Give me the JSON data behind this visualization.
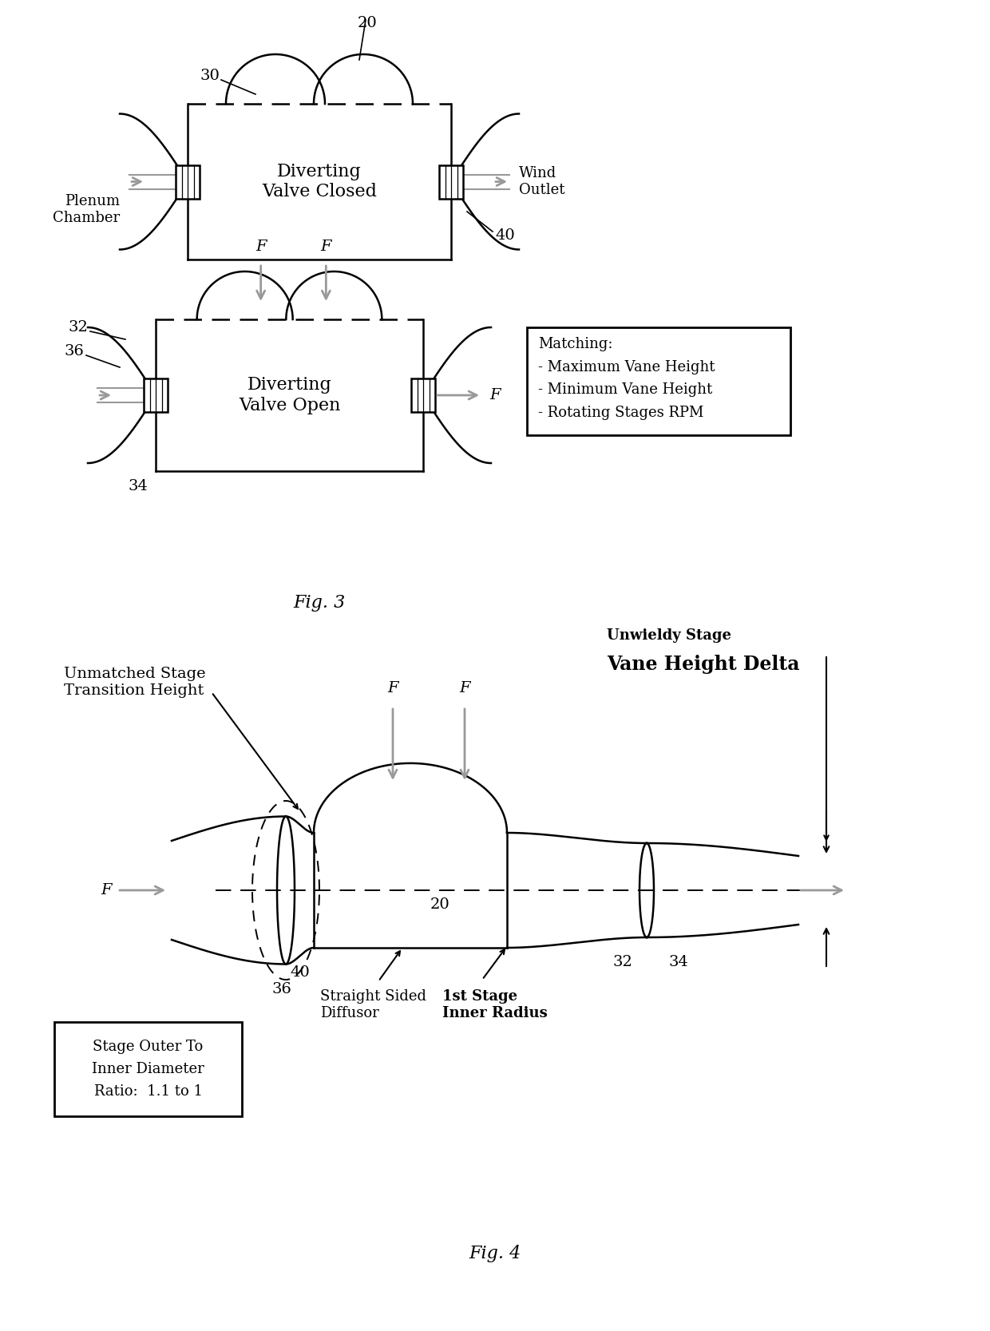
{
  "fig_width": 12.4,
  "fig_height": 16.67,
  "dpi": 100,
  "bg_color": "#ffffff",
  "lc": "#000000",
  "gc": "#999999",
  "lw": 1.8,
  "fig3_label": "Fig. 3",
  "fig4_label": "Fig. 4",
  "fig3a_text": "Diverting\nValve Closed",
  "fig3b_text": "Diverting\nValve Open",
  "matching_text": "Matching:\n- Maximum Vane Height\n- Minimum Vane Height\n- Rotating Stages RPM",
  "stage_ratio_text": "Stage Outer To\nInner Diameter\nRatio:  1.1 to 1",
  "wind_outlet_text": "Wind\nOutlet",
  "plenum_text": "Plenum\nChamber",
  "unmatched_text": "Unmatched Stage\nTransition Height",
  "unwieldy_line1": "Unwieldy Stage",
  "unwieldy_line2": "Vane Height Delta",
  "straight_sided_text": "Straight Sided\nDiffusor",
  "first_stage_text": "1st Stage\nInner Radius"
}
